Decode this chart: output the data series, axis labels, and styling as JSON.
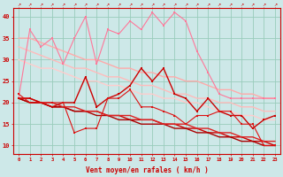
{
  "x": [
    0,
    1,
    2,
    3,
    4,
    5,
    6,
    7,
    8,
    9,
    10,
    11,
    12,
    13,
    14,
    15,
    16,
    17,
    18,
    19,
    20,
    21,
    22,
    23
  ],
  "line_rafales": [
    21,
    37,
    33,
    35,
    29,
    35,
    40,
    29,
    37,
    36,
    39,
    37,
    41,
    38,
    41,
    39,
    32,
    27,
    22,
    21,
    21,
    21,
    21,
    21
  ],
  "line_upper1": [
    35,
    35,
    34,
    33,
    32,
    31,
    30,
    30,
    29,
    28,
    28,
    27,
    27,
    26,
    26,
    25,
    25,
    24,
    23,
    23,
    22,
    22,
    21,
    21
  ],
  "line_upper2": [
    33,
    32,
    31,
    30,
    29,
    28,
    28,
    27,
    26,
    26,
    25,
    24,
    24,
    23,
    22,
    22,
    21,
    21,
    20,
    20,
    19,
    19,
    18,
    18
  ],
  "line_upper3": [
    30,
    29,
    28,
    28,
    27,
    26,
    25,
    25,
    24,
    24,
    23,
    22,
    22,
    21,
    21,
    20,
    20,
    19,
    18,
    18,
    17,
    17,
    16,
    16
  ],
  "line_vent_main": [
    21,
    21,
    20,
    19,
    20,
    20,
    26,
    19,
    21,
    22,
    24,
    28,
    25,
    28,
    22,
    21,
    18,
    21,
    18,
    17,
    17,
    14,
    16,
    17
  ],
  "line_trend1": [
    21,
    20,
    20,
    19,
    19,
    18,
    18,
    18,
    17,
    17,
    16,
    16,
    16,
    15,
    15,
    14,
    14,
    13,
    13,
    12,
    12,
    11,
    11,
    10
  ],
  "line_trend2": [
    21,
    20,
    20,
    19,
    19,
    18,
    18,
    17,
    17,
    16,
    16,
    15,
    15,
    15,
    14,
    14,
    13,
    13,
    12,
    12,
    11,
    11,
    10,
    10
  ],
  "line_trend3": [
    21,
    21,
    20,
    20,
    19,
    19,
    18,
    18,
    17,
    17,
    17,
    16,
    16,
    15,
    15,
    15,
    14,
    14,
    13,
    13,
    12,
    12,
    11,
    11
  ],
  "line_vent_low": [
    22,
    20,
    20,
    20,
    20,
    13,
    14,
    14,
    21,
    21,
    23,
    19,
    19,
    18,
    17,
    15,
    17,
    17,
    18,
    18,
    15,
    15,
    10,
    10
  ],
  "bg_color": "#cde8e8",
  "color_rafales": "#ff7799",
  "color_upper1": "#ffaaaa",
  "color_upper2": "#ffbbbb",
  "color_upper3": "#ffcccc",
  "color_vent_main": "#cc0000",
  "color_trend1": "#cc0000",
  "color_trend2": "#aa0000",
  "color_trend3": "#dd2222",
  "color_vent_low": "#dd1111",
  "xlabel": "Vent moyen/en rafales ( km/h )",
  "ylabel_ticks": [
    10,
    15,
    20,
    25,
    30,
    35,
    40
  ],
  "xlim": [
    -0.5,
    23.5
  ],
  "ylim": [
    8,
    42
  ],
  "grid_color": "#99ccbb",
  "tick_color": "#cc0000",
  "label_color": "#cc0000"
}
